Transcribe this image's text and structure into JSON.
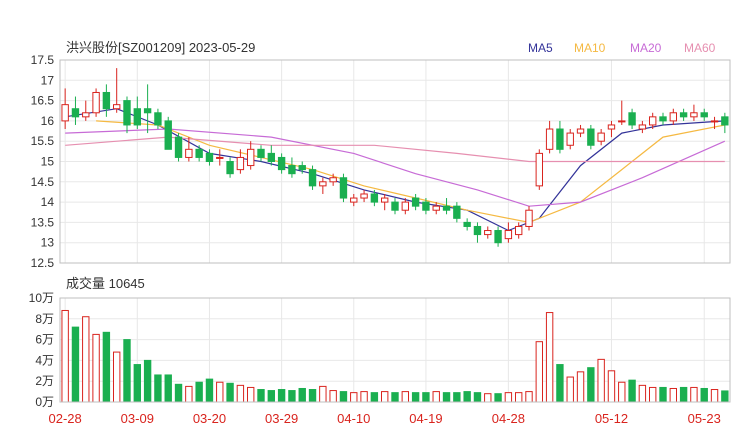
{
  "chart_data": [
    {
      "type": "candlestick",
      "title": "洪兴股份[SZ001209] 2023-05-29",
      "ylim": [
        12.5,
        17.5
      ],
      "yticks": [
        "17.5",
        "17",
        "16.5",
        "16",
        "15.5",
        "15",
        "14.5",
        "14",
        "13.5",
        "13",
        "12.5"
      ],
      "legend": [
        {
          "name": "MA5",
          "color": "#333399"
        },
        {
          "name": "MA10",
          "color": "#f5b942"
        },
        {
          "name": "MA20",
          "color": "#c76bd6"
        },
        {
          "name": "MA60",
          "color": "#e68fb0"
        }
      ],
      "up_color": "#d9241e",
      "down_color": "#1aaf50",
      "candles": [
        [
          16.0,
          16.4,
          16.8,
          15.8
        ],
        [
          16.3,
          16.1,
          16.6,
          15.9
        ],
        [
          16.1,
          16.2,
          16.5,
          16.0
        ],
        [
          16.2,
          16.7,
          16.8,
          16.1
        ],
        [
          16.7,
          16.3,
          16.9,
          16.1
        ],
        [
          16.3,
          16.4,
          17.3,
          16.2
        ],
        [
          16.5,
          15.9,
          16.6,
          15.7
        ],
        [
          16.3,
          15.9,
          16.6,
          15.8
        ],
        [
          16.3,
          16.2,
          16.9,
          15.7
        ],
        [
          16.2,
          15.9,
          16.3,
          15.8
        ],
        [
          16.0,
          15.3,
          16.1,
          15.3
        ],
        [
          15.6,
          15.1,
          15.7,
          15.0
        ],
        [
          15.1,
          15.3,
          15.6,
          15.0
        ],
        [
          15.3,
          15.1,
          15.4,
          15.0
        ],
        [
          15.2,
          15.0,
          15.3,
          14.9
        ],
        [
          15.1,
          15.1,
          15.3,
          14.9
        ],
        [
          15.0,
          14.7,
          15.1,
          14.6
        ],
        [
          14.8,
          15.1,
          15.3,
          14.7
        ],
        [
          14.9,
          15.3,
          15.5,
          14.8
        ],
        [
          15.3,
          15.1,
          15.4,
          15.0
        ],
        [
          15.2,
          15.0,
          15.4,
          14.9
        ],
        [
          15.1,
          14.8,
          15.2,
          14.7
        ],
        [
          14.9,
          14.7,
          15.1,
          14.6
        ],
        [
          14.9,
          14.8,
          15.0,
          14.7
        ],
        [
          14.8,
          14.4,
          14.9,
          14.3
        ],
        [
          14.4,
          14.5,
          14.6,
          14.2
        ],
        [
          14.5,
          14.6,
          14.7,
          14.4
        ],
        [
          14.6,
          14.1,
          14.7,
          14.0
        ],
        [
          14.0,
          14.1,
          14.2,
          13.9
        ],
        [
          14.1,
          14.2,
          14.3,
          14.0
        ],
        [
          14.2,
          14.0,
          14.3,
          13.9
        ],
        [
          14.0,
          14.1,
          14.2,
          13.8
        ],
        [
          14.0,
          13.8,
          14.1,
          13.7
        ],
        [
          13.8,
          14.0,
          14.1,
          13.7
        ],
        [
          14.1,
          13.9,
          14.2,
          13.8
        ],
        [
          14.0,
          13.8,
          14.1,
          13.7
        ],
        [
          13.8,
          13.9,
          14.0,
          13.7
        ],
        [
          13.9,
          13.8,
          14.1,
          13.7
        ],
        [
          13.9,
          13.6,
          14.0,
          13.5
        ],
        [
          13.5,
          13.4,
          13.6,
          13.3
        ],
        [
          13.4,
          13.2,
          13.5,
          13.0
        ],
        [
          13.2,
          13.3,
          13.4,
          13.1
        ],
        [
          13.3,
          13.0,
          13.4,
          12.9
        ],
        [
          13.1,
          13.3,
          13.5,
          13.0
        ],
        [
          13.2,
          13.4,
          13.5,
          13.1
        ],
        [
          13.4,
          13.8,
          13.9,
          13.3
        ],
        [
          14.4,
          15.2,
          15.3,
          14.3
        ],
        [
          15.3,
          15.8,
          16.0,
          15.2
        ],
        [
          15.8,
          15.3,
          16.0,
          15.2
        ],
        [
          15.4,
          15.7,
          15.8,
          15.3
        ],
        [
          15.7,
          15.8,
          15.9,
          15.6
        ],
        [
          15.8,
          15.4,
          15.9,
          15.3
        ],
        [
          15.5,
          15.7,
          15.8,
          15.4
        ],
        [
          15.8,
          15.9,
          16.0,
          15.6
        ],
        [
          16.0,
          16.0,
          16.5,
          15.9
        ],
        [
          16.2,
          15.9,
          16.3,
          15.8
        ],
        [
          15.8,
          15.9,
          16.0,
          15.7
        ],
        [
          15.9,
          16.1,
          16.2,
          15.8
        ],
        [
          16.1,
          16.0,
          16.2,
          15.9
        ],
        [
          16.0,
          16.2,
          16.3,
          15.9
        ],
        [
          16.2,
          16.1,
          16.3,
          16.0
        ],
        [
          16.1,
          16.2,
          16.4,
          16.0
        ],
        [
          16.2,
          16.1,
          16.3,
          16.0
        ],
        [
          16.0,
          16.0,
          16.1,
          15.8
        ],
        [
          16.1,
          15.9,
          16.2,
          15.7
        ]
      ],
      "ma": {
        "MA5": [
          [
            0,
            16.1
          ],
          [
            5,
            16.3
          ],
          [
            9,
            15.9
          ],
          [
            14,
            15.2
          ],
          [
            19,
            15.0
          ],
          [
            24,
            14.7
          ],
          [
            29,
            14.3
          ],
          [
            34,
            14.0
          ],
          [
            39,
            13.8
          ],
          [
            43,
            13.3
          ],
          [
            46,
            13.6
          ],
          [
            50,
            14.9
          ],
          [
            54,
            15.7
          ],
          [
            58,
            15.9
          ],
          [
            64,
            16.0
          ]
        ],
        "MA10": [
          [
            3,
            16.0
          ],
          [
            9,
            15.9
          ],
          [
            14,
            15.4
          ],
          [
            19,
            15.1
          ],
          [
            24,
            14.8
          ],
          [
            29,
            14.4
          ],
          [
            34,
            14.1
          ],
          [
            39,
            13.8
          ],
          [
            45,
            13.5
          ],
          [
            50,
            14.0
          ],
          [
            54,
            14.8
          ],
          [
            58,
            15.6
          ],
          [
            64,
            15.9
          ]
        ],
        "MA20": [
          [
            0,
            15.7
          ],
          [
            10,
            15.8
          ],
          [
            20,
            15.6
          ],
          [
            28,
            15.2
          ],
          [
            34,
            14.7
          ],
          [
            40,
            14.3
          ],
          [
            45,
            13.9
          ],
          [
            50,
            14.0
          ],
          [
            56,
            14.6
          ],
          [
            64,
            15.5
          ]
        ],
        "MA60": [
          [
            0,
            15.4
          ],
          [
            10,
            15.6
          ],
          [
            20,
            15.4
          ],
          [
            30,
            15.4
          ],
          [
            38,
            15.2
          ],
          [
            45,
            15.0
          ],
          [
            52,
            15.0
          ],
          [
            64,
            15.0
          ]
        ]
      }
    },
    {
      "type": "bar",
      "title": "成交量 10645",
      "ylim": [
        0,
        100000
      ],
      "yticks": [
        "10万",
        "8万",
        "6万",
        "4万",
        "2万",
        "0万"
      ],
      "volumes": [
        88000,
        72000,
        82000,
        65000,
        67000,
        48000,
        60000,
        36000,
        40000,
        26000,
        26000,
        17000,
        15000,
        19000,
        22000,
        19000,
        18000,
        16000,
        14000,
        12000,
        11000,
        12000,
        11000,
        13000,
        12000,
        15000,
        11000,
        10000,
        9000,
        10000,
        9000,
        10000,
        9000,
        10000,
        9000,
        9000,
        10000,
        9000,
        9000,
        10000,
        9000,
        8000,
        8000,
        9000,
        9000,
        10000,
        58000,
        86000,
        36000,
        24000,
        29000,
        33000,
        41000,
        30000,
        19000,
        21000,
        16000,
        14000,
        14000,
        13000,
        14000,
        14000,
        13000,
        12000,
        10645
      ],
      "categories": [
        "02-28",
        "03-09",
        "03-20",
        "03-29",
        "04-10",
        "04-19",
        "04-28",
        "05-12",
        "05-23"
      ]
    }
  ]
}
